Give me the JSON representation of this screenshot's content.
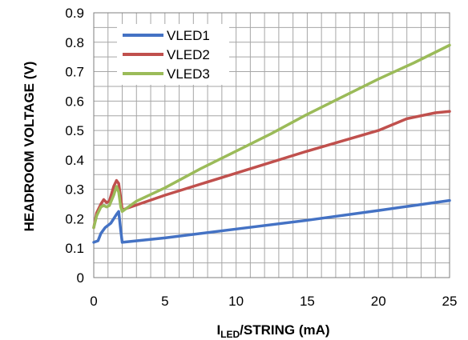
{
  "chart_data": {
    "type": "line",
    "xlabel": {
      "main": "I",
      "sub": "LED",
      "rest": "/STRING  (mA)"
    },
    "ylabel": "HEADROOM   VOLTAGE  (V)",
    "xlim": [
      0,
      25
    ],
    "ylim": [
      0,
      0.9
    ],
    "x_ticks": [
      0,
      5,
      10,
      15,
      20,
      25
    ],
    "y_ticks": [
      0,
      0.1,
      0.2,
      0.3,
      0.4,
      0.5,
      0.6,
      0.7,
      0.8,
      0.9
    ],
    "x_tick_labels": [
      "0",
      "5",
      "10",
      "15",
      "20",
      "25"
    ],
    "y_tick_labels": [
      "0",
      "0.1",
      "0.2",
      "0.3",
      "0.4",
      "0.5",
      "0.6",
      "0.7",
      "0.8",
      "0.9"
    ],
    "x_minor_step": 1,
    "y_minor_step": 0.05,
    "grid": true,
    "legend_position": "top-left",
    "series": [
      {
        "name": "VLED1",
        "color": "#4472c4",
        "x": [
          0,
          0.3,
          0.5,
          0.8,
          1.2,
          1.6,
          1.75,
          1.9,
          2,
          5,
          10,
          15,
          20,
          25
        ],
        "y": [
          0.12,
          0.125,
          0.15,
          0.17,
          0.185,
          0.215,
          0.225,
          0.16,
          0.12,
          0.135,
          0.165,
          0.195,
          0.228,
          0.262
        ]
      },
      {
        "name": "VLED2",
        "color": "#c0504d",
        "x": [
          0,
          0.2,
          0.5,
          0.7,
          0.9,
          1.1,
          1.4,
          1.6,
          1.75,
          1.9,
          2,
          5,
          10,
          15,
          20,
          22,
          24,
          25
        ],
        "y": [
          0.17,
          0.22,
          0.25,
          0.265,
          0.255,
          0.26,
          0.31,
          0.33,
          0.32,
          0.27,
          0.23,
          0.28,
          0.355,
          0.43,
          0.5,
          0.54,
          0.56,
          0.565
        ]
      },
      {
        "name": "VLED3",
        "color": "#9bbb59",
        "x": [
          0,
          0.2,
          0.5,
          0.7,
          0.9,
          1.1,
          1.4,
          1.6,
          1.75,
          1.9,
          2,
          3,
          5,
          7.5,
          10,
          12.5,
          15,
          17.5,
          20,
          22.5,
          25
        ],
        "y": [
          0.17,
          0.21,
          0.24,
          0.245,
          0.24,
          0.245,
          0.28,
          0.31,
          0.29,
          0.24,
          0.225,
          0.26,
          0.305,
          0.37,
          0.43,
          0.49,
          0.555,
          0.615,
          0.675,
          0.73,
          0.79
        ]
      }
    ]
  }
}
